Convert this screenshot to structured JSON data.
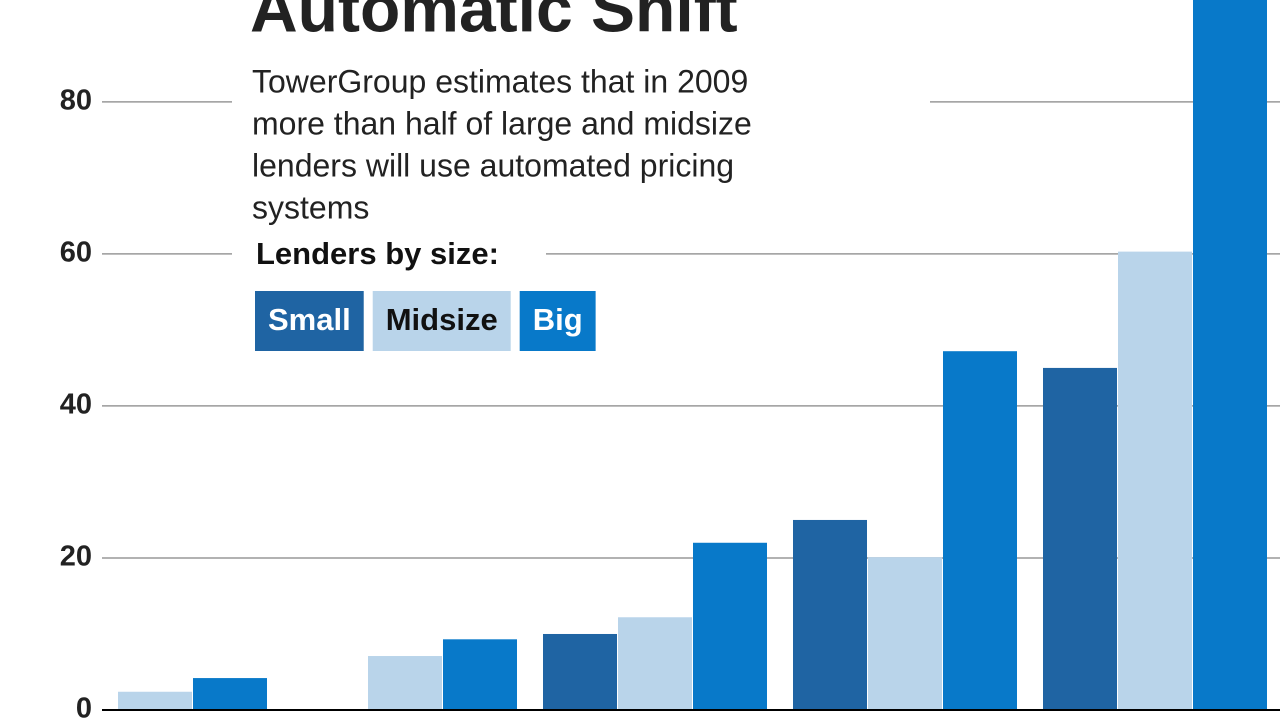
{
  "chart_data": {
    "type": "bar",
    "title": "Automatic Shift",
    "subtitle": [
      "TowerGroup estimates that in 2009",
      "more than half of large and midsize",
      "lenders will use automated pricing",
      "systems"
    ],
    "legend_title": "Lenders by size:",
    "categories": [
      null,
      null,
      null,
      null,
      null
    ],
    "series": [
      {
        "name": "Small",
        "color": "#1f64a3",
        "values": [
          null,
          null,
          10,
          25,
          45
        ]
      },
      {
        "name": "Midsize",
        "color": "#b9d4ea",
        "values": [
          2.4,
          7.1,
          12.2,
          20.1,
          60.3
        ]
      },
      {
        "name": "Big",
        "color": "#0879c9",
        "values": [
          4.2,
          9.3,
          22,
          47.2,
          95
        ]
      }
    ],
    "ylim": [
      0,
      93.4
    ],
    "yticks": [
      0,
      20,
      40,
      60,
      80
    ],
    "grid": true
  }
}
